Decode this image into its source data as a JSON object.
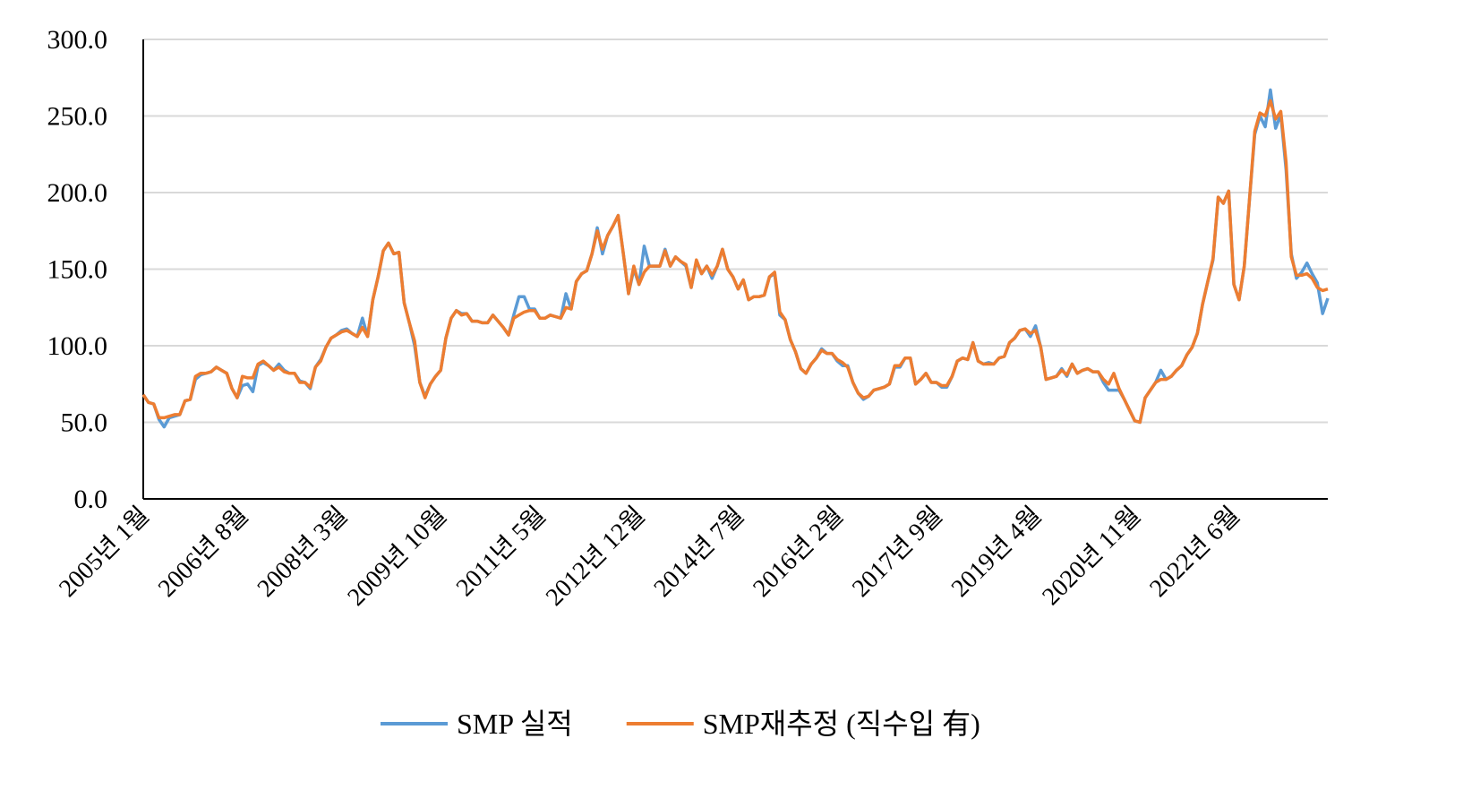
{
  "chart_data": {
    "type": "line",
    "categories": [
      "2005년 1월",
      null,
      null,
      null,
      null,
      null,
      null,
      null,
      null,
      null,
      null,
      null,
      null,
      null,
      null,
      null,
      null,
      null,
      null,
      "2006년 8월",
      null,
      null,
      null,
      null,
      null,
      null,
      null,
      null,
      null,
      null,
      null,
      null,
      null,
      null,
      null,
      null,
      null,
      null,
      "2008년 3월",
      null,
      null,
      null,
      null,
      null,
      null,
      null,
      null,
      null,
      null,
      null,
      null,
      null,
      null,
      null,
      null,
      null,
      null,
      "2009년 10월",
      null,
      null,
      null,
      null,
      null,
      null,
      null,
      null,
      null,
      null,
      null,
      null,
      null,
      null,
      null,
      null,
      null,
      null,
      "2011년 5월",
      null,
      null,
      null,
      null,
      null,
      null,
      null,
      null,
      null,
      null,
      null,
      null,
      null,
      null,
      null,
      null,
      null,
      null,
      "2012년 12월",
      null,
      null,
      null,
      null,
      null,
      null,
      null,
      null,
      null,
      null,
      null,
      null,
      null,
      null,
      null,
      null,
      null,
      null,
      "2014년 7월",
      null,
      null,
      null,
      null,
      null,
      null,
      null,
      null,
      null,
      null,
      null,
      null,
      null,
      null,
      null,
      null,
      null,
      null,
      "2016년 2월",
      null,
      null,
      null,
      null,
      null,
      null,
      null,
      null,
      null,
      null,
      null,
      null,
      null,
      null,
      null,
      null,
      null,
      null,
      "2017년 9월",
      null,
      null,
      null,
      null,
      null,
      null,
      null,
      null,
      null,
      null,
      null,
      null,
      null,
      null,
      null,
      null,
      null,
      null,
      "2019년 4월",
      null,
      null,
      null,
      null,
      null,
      null,
      null,
      null,
      null,
      null,
      null,
      null,
      null,
      null,
      null,
      null,
      null,
      null,
      "2020년 11월",
      null,
      null,
      null,
      null,
      null,
      null,
      null,
      null,
      null,
      null,
      null,
      null,
      null,
      null,
      null,
      null,
      null,
      null,
      "2022년 6월",
      null,
      null,
      null,
      null,
      null,
      null,
      null,
      null,
      null,
      null,
      null,
      null,
      null,
      null,
      null,
      null,
      null,
      null
    ],
    "series": [
      {
        "name": "SMP 실적",
        "color": "#5b9bd5",
        "values": [
          68,
          63,
          62,
          52,
          47,
          53,
          54,
          55,
          64,
          65,
          78,
          81,
          82,
          83,
          86,
          84,
          82,
          72,
          66,
          74,
          75,
          70,
          87,
          89,
          87,
          84,
          88,
          84,
          82,
          82,
          77,
          76,
          72,
          86,
          91,
          99,
          105,
          107,
          110,
          111,
          108,
          106,
          118,
          106,
          130,
          145,
          162,
          167,
          160,
          161,
          128,
          115,
          100,
          76,
          67,
          75,
          80,
          84,
          105,
          118,
          123,
          121,
          121,
          116,
          116,
          115,
          115,
          120,
          116,
          112,
          107,
          120,
          132,
          132,
          124,
          124,
          118,
          118,
          120,
          119,
          118,
          134,
          124,
          142,
          147,
          149,
          160,
          177,
          160,
          172,
          178,
          185,
          160,
          134,
          150,
          140,
          165,
          152,
          152,
          152,
          163,
          152,
          158,
          155,
          152,
          138,
          155,
          147,
          152,
          144,
          152,
          163,
          150,
          145,
          137,
          143,
          130,
          132,
          132,
          133,
          145,
          147,
          120,
          117,
          104,
          96,
          85,
          82,
          88,
          92,
          98,
          95,
          95,
          90,
          87,
          87,
          76,
          69,
          65,
          67,
          71,
          72,
          73,
          75,
          86,
          86,
          92,
          92,
          75,
          78,
          82,
          76,
          76,
          73,
          73,
          80,
          90,
          92,
          91,
          102,
          90,
          88,
          89,
          88,
          92,
          93,
          102,
          105,
          110,
          111,
          106,
          113,
          99,
          78,
          79,
          80,
          85,
          80,
          88,
          82,
          84,
          85,
          83,
          83,
          76,
          71,
          71,
          71,
          65,
          58,
          51,
          50,
          66,
          71,
          76,
          84,
          78,
          80,
          84,
          87,
          94,
          99,
          108,
          127,
          142,
          156,
          197,
          193,
          201,
          140,
          130,
          152,
          196,
          238,
          250,
          243,
          267,
          242,
          251,
          215,
          160,
          144,
          148,
          154,
          147,
          141,
          121,
          131
        ]
      },
      {
        "name": "SMP재추정 (직수입 有)",
        "color": "#ed7d31",
        "values": [
          68,
          63,
          62,
          53,
          53,
          54,
          55,
          55,
          64,
          65,
          80,
          82,
          82,
          83,
          86,
          84,
          82,
          72,
          66,
          80,
          79,
          79,
          88,
          90,
          87,
          84,
          86,
          83,
          82,
          82,
          76,
          76,
          73,
          86,
          90,
          99,
          105,
          107,
          109,
          110,
          108,
          106,
          112,
          106,
          130,
          145,
          162,
          167,
          160,
          161,
          128,
          115,
          103,
          76,
          66,
          75,
          80,
          84,
          105,
          118,
          123,
          120,
          121,
          116,
          116,
          115,
          115,
          120,
          116,
          112,
          107,
          118,
          120,
          122,
          123,
          123,
          118,
          118,
          120,
          119,
          118,
          125,
          124,
          142,
          147,
          149,
          160,
          175,
          163,
          172,
          178,
          185,
          160,
          134,
          152,
          140,
          148,
          152,
          152,
          152,
          162,
          152,
          158,
          155,
          153,
          138,
          156,
          147,
          152,
          146,
          152,
          163,
          150,
          145,
          137,
          143,
          130,
          132,
          132,
          133,
          145,
          148,
          122,
          117,
          104,
          96,
          85,
          82,
          88,
          92,
          97,
          95,
          95,
          91,
          89,
          86,
          76,
          69,
          66,
          67,
          71,
          72,
          73,
          75,
          87,
          87,
          92,
          92,
          75,
          78,
          82,
          76,
          76,
          74,
          74,
          80,
          90,
          92,
          91,
          102,
          90,
          88,
          88,
          88,
          92,
          93,
          102,
          105,
          110,
          111,
          108,
          110,
          99,
          78,
          79,
          80,
          84,
          81,
          88,
          82,
          84,
          85,
          83,
          83,
          78,
          75,
          82,
          72,
          65,
          58,
          51,
          50,
          66,
          71,
          76,
          78,
          78,
          80,
          84,
          87,
          94,
          99,
          108,
          127,
          142,
          157,
          197,
          193,
          201,
          140,
          130,
          152,
          196,
          240,
          252,
          250,
          260,
          248,
          253,
          220,
          158,
          146,
          146,
          147,
          144,
          138,
          136,
          137
        ]
      }
    ],
    "ylim": [
      0,
      300
    ],
    "yticks": [
      {
        "value": 0,
        "label": "0.0"
      },
      {
        "value": 50,
        "label": "50.0"
      },
      {
        "value": 100,
        "label": "100.0"
      },
      {
        "value": 150,
        "label": "150.0"
      },
      {
        "value": 200,
        "label": "200.0"
      },
      {
        "value": 250,
        "label": "250.0"
      },
      {
        "value": 300,
        "label": "300.0"
      }
    ],
    "grid": true,
    "legend": "bottom"
  }
}
